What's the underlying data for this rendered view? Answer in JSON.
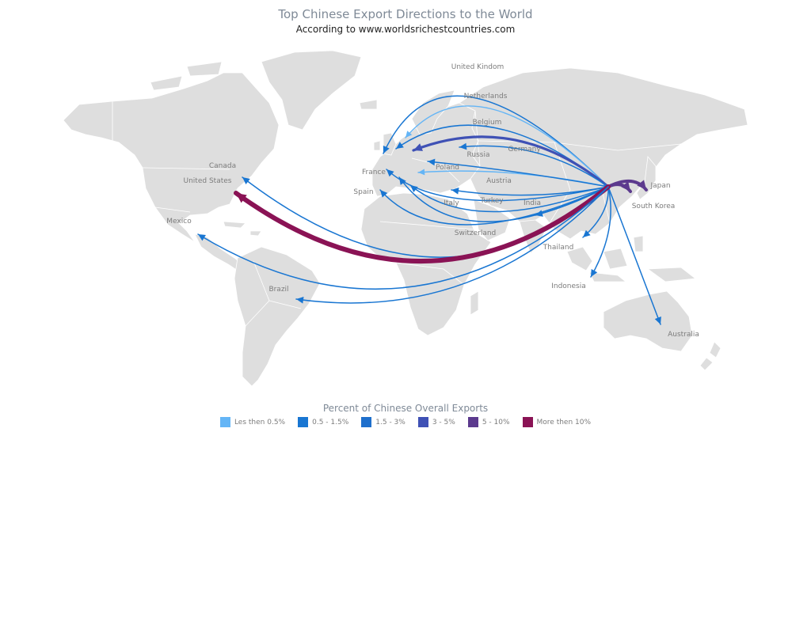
{
  "title": "Top Chinese Export Directions to the World",
  "subtitle": "According to www.worldsrichestcountries.com",
  "legend": {
    "title": "Percent of Chinese Overall Exports",
    "items": [
      {
        "label": "Les then 0.5%",
        "color": "#64b5f6"
      },
      {
        "label": "0.5 - 1.5%",
        "color": "#1976d2"
      },
      {
        "label": "1.5 - 3%",
        "color": "#1e6fcc"
      },
      {
        "label": "3 - 5%",
        "color": "#3f51b5"
      },
      {
        "label": "5 - 10%",
        "color": "#5c3a8e"
      },
      {
        "label": "More then 10%",
        "color": "#8a1355"
      }
    ]
  },
  "origin": "China",
  "routes": [
    {
      "country": "United Kindom",
      "tier": 1
    },
    {
      "country": "Netherlands",
      "tier": 0
    },
    {
      "country": "Belgium",
      "tier": 1
    },
    {
      "country": "Germany",
      "tier": 3
    },
    {
      "country": "Russia",
      "tier": 1
    },
    {
      "country": "Poland",
      "tier": 0
    },
    {
      "country": "France",
      "tier": 1
    },
    {
      "country": "Spain",
      "tier": 1
    },
    {
      "country": "Italy",
      "tier": 1
    },
    {
      "country": "Austria",
      "tier": 1
    },
    {
      "country": "Turkey",
      "tier": 1
    },
    {
      "country": "India",
      "tier": 1
    },
    {
      "country": "Switzerland",
      "tier": 1
    },
    {
      "country": "Thailand",
      "tier": 1
    },
    {
      "country": "Indonesia",
      "tier": 1
    },
    {
      "country": "Australia",
      "tier": 1
    },
    {
      "country": "Japan",
      "tier": 4
    },
    {
      "country": "South Korea",
      "tier": 4
    },
    {
      "country": "Canada",
      "tier": 1
    },
    {
      "country": "United States",
      "tier": 5
    },
    {
      "country": "Mexico",
      "tier": 1
    },
    {
      "country": "Brazil",
      "tier": 1
    }
  ]
}
